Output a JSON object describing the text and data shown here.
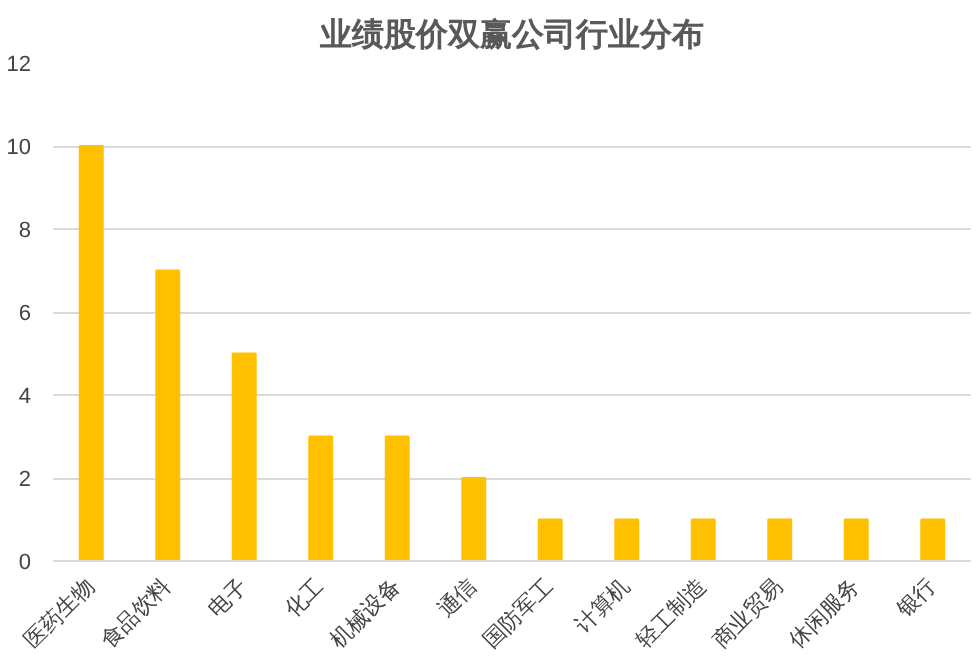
{
  "chart_data": {
    "type": "bar",
    "title": "业绩股价双赢公司行业分布",
    "categories": [
      "医药生物",
      "食品饮料",
      "电子",
      "化工",
      "机械设备",
      "通信",
      "国防军工",
      "计算机",
      "轻工制造",
      "商业贸易",
      "休闲服务",
      "银行"
    ],
    "values": [
      10,
      7,
      5,
      3,
      3,
      2,
      1,
      1,
      1,
      1,
      1,
      1
    ],
    "color": "#ffc000",
    "ylim": [
      0,
      12
    ],
    "yticks": [
      0,
      2,
      4,
      6,
      8,
      10,
      12
    ],
    "grid": "y"
  }
}
